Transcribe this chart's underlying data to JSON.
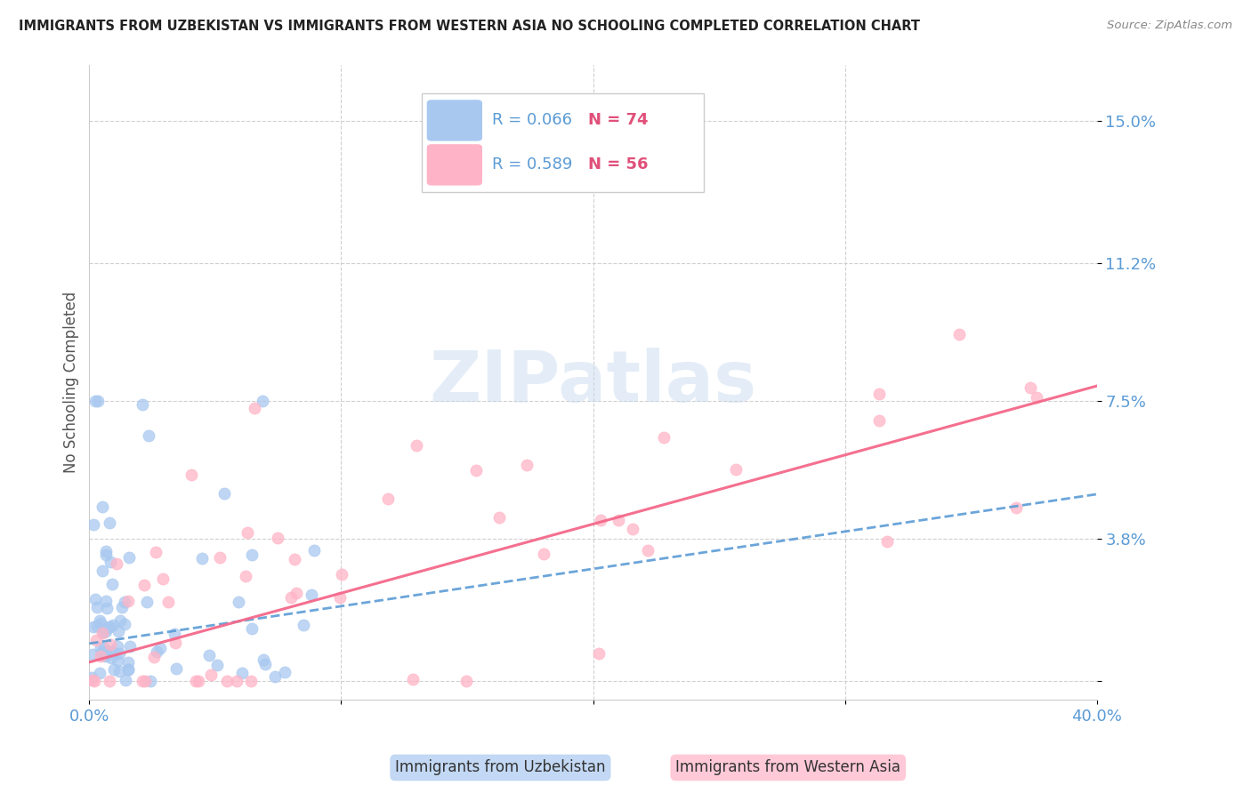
{
  "title": "IMMIGRANTS FROM UZBEKISTAN VS IMMIGRANTS FROM WESTERN ASIA NO SCHOOLING COMPLETED CORRELATION CHART",
  "source": "Source: ZipAtlas.com",
  "ylabel": "No Schooling Completed",
  "y_ticks": [
    0.0,
    0.038,
    0.075,
    0.112,
    0.15
  ],
  "y_tick_labels": [
    "",
    "3.8%",
    "7.5%",
    "11.2%",
    "15.0%"
  ],
  "x_range": [
    0.0,
    0.4
  ],
  "y_range": [
    -0.005,
    0.165
  ],
  "series1_label": "Immigrants from Uzbekistan",
  "series1_R": "0.066",
  "series1_N": "74",
  "series1_color": "#a8c8f0",
  "series1_line_color": "#5b9bd5",
  "series2_label": "Immigrants from Western Asia",
  "series2_R": "0.589",
  "series2_N": "56",
  "series2_color": "#ffb3c6",
  "series2_line_color": "#f4688a",
  "watermark_text": "ZIPatlas",
  "background_color": "#ffffff",
  "grid_color": "#d0d0d0",
  "title_color": "#222222",
  "axis_label_color": "#5b9bd5",
  "legend_R_color": "#5b9bd5",
  "legend_N_color": "#e0507a",
  "uzb_line_start_x": 0.0,
  "uzb_line_start_y": 0.01,
  "uzb_line_end_x": 0.4,
  "uzb_line_end_y": 0.05,
  "wa_line_start_x": 0.0,
  "wa_line_start_y": 0.005,
  "wa_line_end_x": 0.4,
  "wa_line_end_y": 0.079
}
